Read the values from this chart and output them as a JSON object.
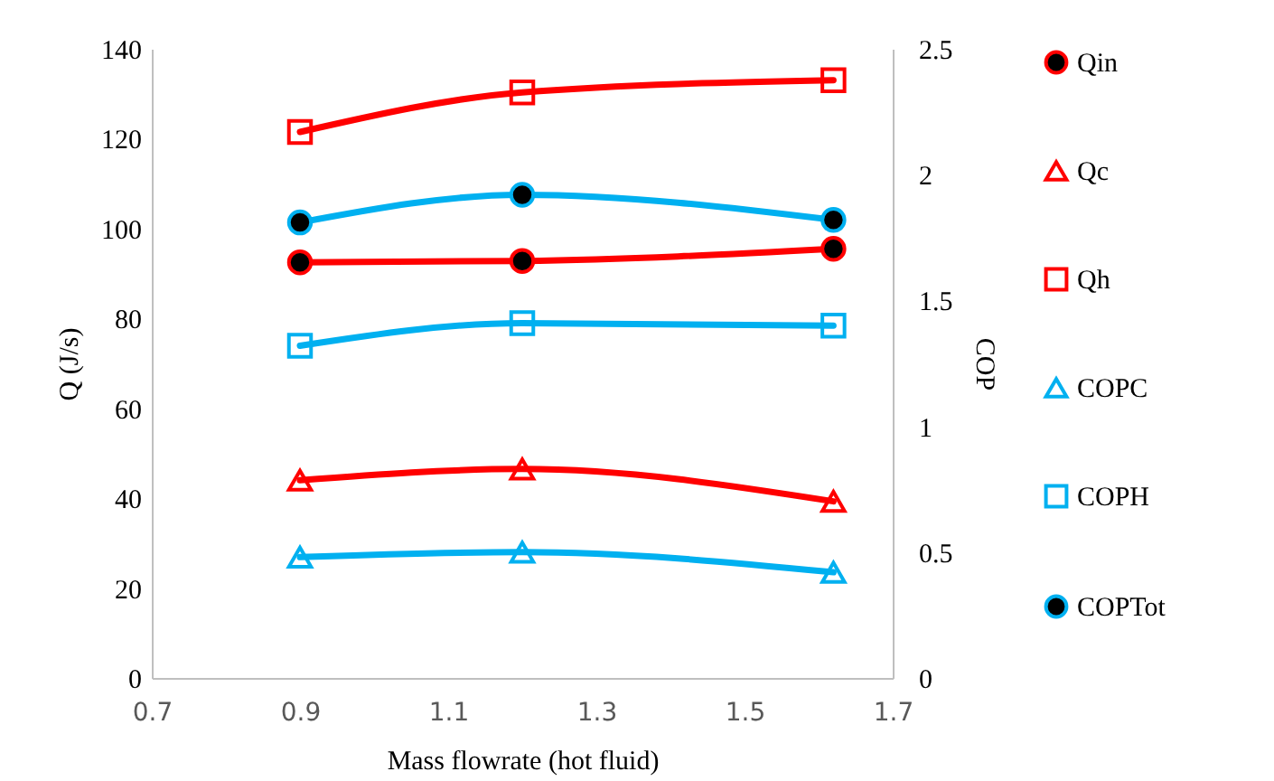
{
  "chart_data": {
    "type": "line",
    "xlabel": "Mass flowrate (hot fluid)",
    "ylabel": "Q (J/s)",
    "y2label": "COP",
    "x": [
      0.9,
      1.2,
      1.62
    ],
    "xlim": [
      0.7,
      1.7
    ],
    "xticks": [
      0.7,
      0.9,
      1.1,
      1.3,
      1.5,
      1.7
    ],
    "ylim": [
      0,
      140
    ],
    "yticks": [
      0,
      20,
      40,
      60,
      80,
      100,
      120,
      140
    ],
    "y2lim": [
      0,
      2.5
    ],
    "y2ticks": [
      0,
      0.5,
      1,
      1.5,
      2,
      2.5
    ],
    "grid": false,
    "legend": "right",
    "series": [
      {
        "name": "Qin",
        "color": "#ff0000",
        "marker": "circle",
        "values": [
          92.5,
          92.8,
          95.5
        ]
      },
      {
        "name": "Qc",
        "color": "#ff0000",
        "marker": "triangle",
        "values": [
          44.0,
          46.5,
          39.3
        ]
      },
      {
        "name": "Qh",
        "color": "#ff0000",
        "marker": "square",
        "values": [
          121.5,
          130.3,
          133.0
        ]
      },
      {
        "name": "COPC",
        "color": "#00b0f0",
        "marker": "triangle",
        "axis": "y2",
        "values": [
          0.48,
          0.5,
          0.42
        ]
      },
      {
        "name": "COPH",
        "color": "#00b0f0",
        "marker": "square",
        "axis": "y2",
        "values": [
          1.32,
          1.41,
          1.4
        ]
      },
      {
        "name": "COPTot",
        "color": "#00b0f0",
        "marker": "circle",
        "axis": "y2",
        "values": [
          1.81,
          1.92,
          1.82
        ]
      }
    ]
  }
}
